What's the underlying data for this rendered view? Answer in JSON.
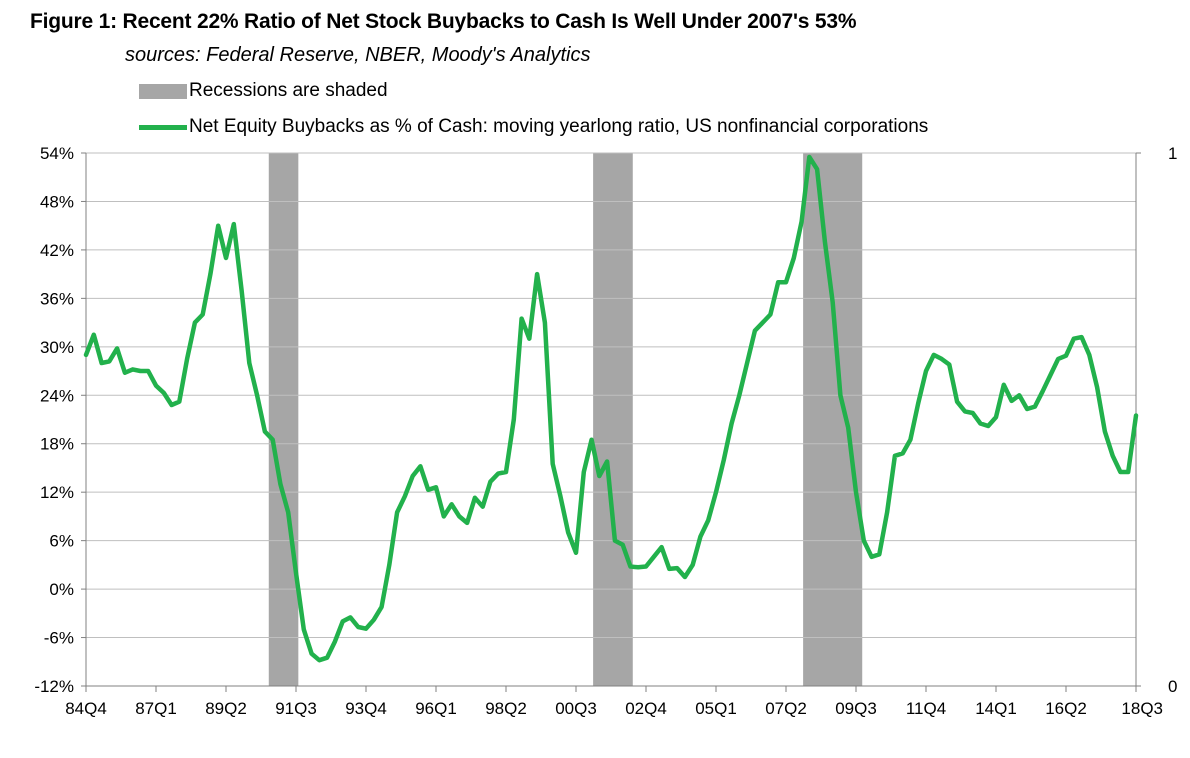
{
  "title": "Figure 1: Recent 22% Ratio of Net Stock Buybacks to Cash Is Well Under 2007's 53%",
  "subtitle": "sources: Federal Reserve, NBER, Moody's Analytics",
  "legend": {
    "recessions": "Recessions are shaded",
    "series": "Net Equity Buybacks as % of Cash: moving yearlong ratio, US nonfinancial corporations"
  },
  "colors": {
    "series": "#22b14c",
    "recession": "#a6a6a6",
    "grid": "#bfbfbf",
    "axis": "#808080"
  },
  "chart_data": {
    "type": "line",
    "title": "Figure 1: Recent 22% Ratio of Net Stock Buybacks to Cash Is Well Under 2007's 53%",
    "xlabel": "",
    "ylabel": "",
    "x_start": "1984Q4",
    "x_end": "2018Q3",
    "x_range_quarter_index": [
      0,
      135
    ],
    "x_tick_labels": [
      "84Q4",
      "87Q1",
      "89Q2",
      "91Q3",
      "93Q4",
      "96Q1",
      "98Q2",
      "00Q3",
      "02Q4",
      "05Q1",
      "07Q2",
      "09Q3",
      "11Q4",
      "14Q1",
      "16Q2",
      "18Q3"
    ],
    "x_tick_quarter_index": [
      0,
      9,
      18,
      27,
      36,
      45,
      54,
      63,
      72,
      81,
      90,
      99,
      108,
      117,
      126,
      135
    ],
    "ylim": [
      -12,
      54
    ],
    "y_tick_values": [
      -12,
      -6,
      0,
      6,
      12,
      18,
      24,
      30,
      36,
      42,
      48,
      54
    ],
    "y_tick_labels": [
      "-12%",
      "-6%",
      "0%",
      "6%",
      "12%",
      "18%",
      "24%",
      "30%",
      "36%",
      "42%",
      "48%",
      "54%"
    ],
    "y2_tick_labels": [
      "0",
      "1"
    ],
    "recessions": [
      {
        "start": "1990Q3",
        "end": "1991Q1",
        "start_index": 23.5,
        "end_index": 27.3
      },
      {
        "start": "2001Q1",
        "end": "2001Q4",
        "start_index": 65.2,
        "end_index": 70.3
      },
      {
        "start": "2007Q4",
        "end": "2009Q2",
        "start_index": 92.2,
        "end_index": 99.8
      }
    ],
    "series": [
      {
        "name": "Net Equity Buybacks as % of Cash: moving yearlong ratio, US nonfinancial corporations",
        "x": [
          0,
          1,
          2,
          3,
          4,
          5,
          6,
          7,
          8,
          9,
          10,
          11,
          12,
          13,
          14,
          15,
          16,
          17,
          18,
          19,
          20,
          21,
          22,
          23,
          24,
          25,
          26,
          27,
          28,
          29,
          30,
          31,
          32,
          33,
          34,
          35,
          36,
          37,
          38,
          39,
          40,
          41,
          42,
          43,
          44,
          45,
          46,
          47,
          48,
          49,
          50,
          51,
          52,
          53,
          54,
          55,
          56,
          57,
          58,
          59,
          60,
          61,
          62,
          63,
          64,
          65,
          66,
          67,
          68,
          69,
          70,
          71,
          72,
          73,
          74,
          75,
          76,
          77,
          78,
          79,
          80,
          81,
          82,
          83,
          84,
          85,
          86,
          87,
          88,
          89,
          90,
          91,
          92,
          93,
          94,
          95,
          96,
          97,
          98,
          99,
          100,
          101,
          102,
          103,
          104,
          105,
          106,
          107,
          108,
          109,
          110,
          111,
          112,
          113,
          114,
          115,
          116,
          117,
          118,
          119,
          120,
          121,
          122,
          123,
          124,
          125,
          126,
          127,
          128,
          129,
          130,
          131,
          132,
          133,
          134,
          135
        ],
        "values": [
          29,
          31.5,
          28,
          28.2,
          29.8,
          26.8,
          27.2,
          27,
          27,
          25.2,
          24.3,
          22.8,
          23.2,
          28.5,
          33,
          34,
          39,
          45,
          41,
          45.2,
          37,
          28,
          24,
          19.5,
          18.5,
          13,
          9.5,
          2,
          -5,
          -8,
          -8.8,
          -8.5,
          -6.5,
          -4,
          -3.5,
          -4.7,
          -4.9,
          -3.8,
          -2.2,
          3,
          9.5,
          11.5,
          14,
          15.2,
          12.3,
          12.6,
          9,
          10.5,
          9,
          8.2,
          11.3,
          10.2,
          13.3,
          14.3,
          14.5,
          21,
          33.5,
          31,
          39,
          33,
          15.5,
          11.5,
          7,
          4.5,
          14.5,
          18.5,
          14,
          15.8,
          6,
          5.5,
          2.8,
          2.7,
          2.8,
          4,
          5.2,
          2.5,
          2.6,
          1.5,
          3,
          6.5,
          8.5,
          12,
          16,
          20.5,
          24,
          28,
          32,
          33,
          34,
          38,
          38,
          41,
          45.5,
          53.5,
          52,
          43,
          35.5,
          24,
          20,
          12,
          6,
          4,
          4.3,
          9.5,
          16.5,
          16.8,
          18.5,
          23,
          27,
          29,
          28.5,
          27.8,
          23.2,
          22,
          21.8,
          20.5,
          20.2,
          21.3,
          25.3,
          23.3,
          24,
          22.3,
          22.6,
          24.5,
          26.5,
          28.5,
          28.9,
          31,
          31.2,
          29,
          25,
          19.5,
          16.5,
          14.5,
          14.5,
          21.5
        ]
      }
    ]
  }
}
